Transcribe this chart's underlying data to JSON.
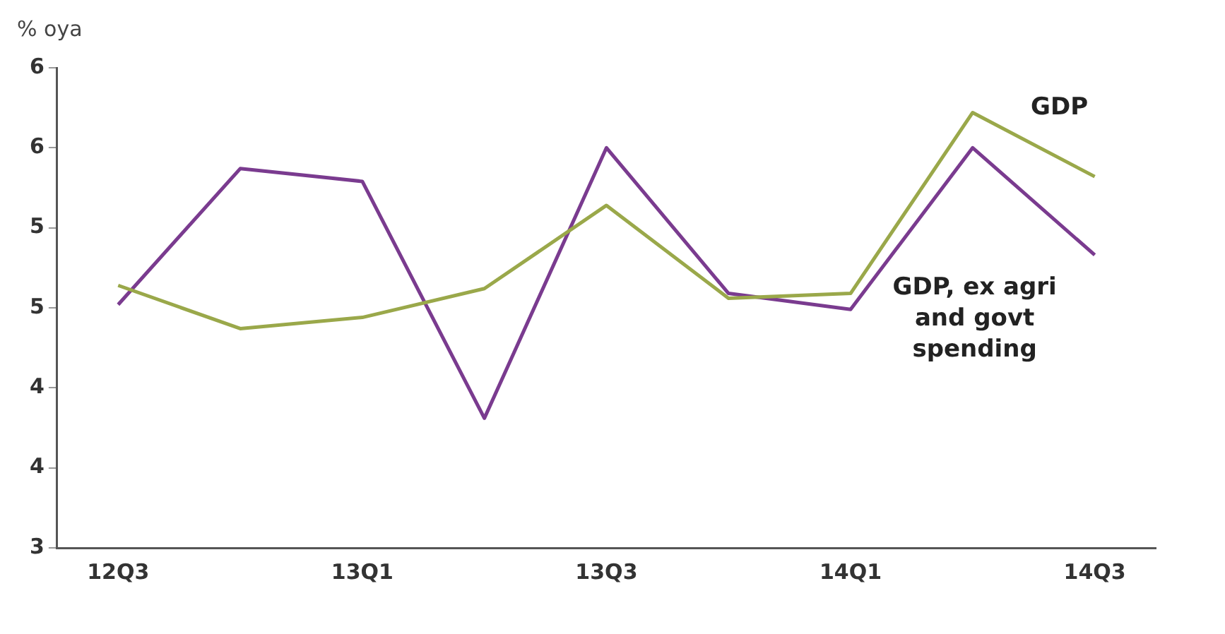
{
  "chart_data": {
    "type": "line",
    "ylabel": "% oya",
    "categories": [
      "12Q3",
      null,
      "13Q1",
      null,
      "13Q3",
      null,
      "14Q1",
      null,
      "14Q3"
    ],
    "series": [
      {
        "name": "GDP",
        "color": "#9aa84a",
        "values": [
          4.64,
          4.37,
          4.44,
          4.62,
          5.14,
          4.56,
          4.59,
          5.72,
          5.32
        ]
      },
      {
        "name": "GDP, ex agri and govt spending",
        "color": "#7a3b8f",
        "values": [
          4.52,
          5.37,
          5.29,
          3.81,
          5.5,
          4.59,
          4.49,
          5.5,
          4.83
        ]
      }
    ],
    "ylim": [
      3,
      6
    ],
    "yticks": [
      {
        "value": 3,
        "label": "3"
      },
      {
        "value": 3.5,
        "label": "4"
      },
      {
        "value": 4,
        "label": "4"
      },
      {
        "value": 4.5,
        "label": "5"
      },
      {
        "value": 5,
        "label": "5"
      },
      {
        "value": 5.5,
        "label": "6"
      },
      {
        "value": 6,
        "label": "6"
      }
    ],
    "grid": false,
    "legend": false,
    "marker": "none",
    "line_style": "solid"
  }
}
